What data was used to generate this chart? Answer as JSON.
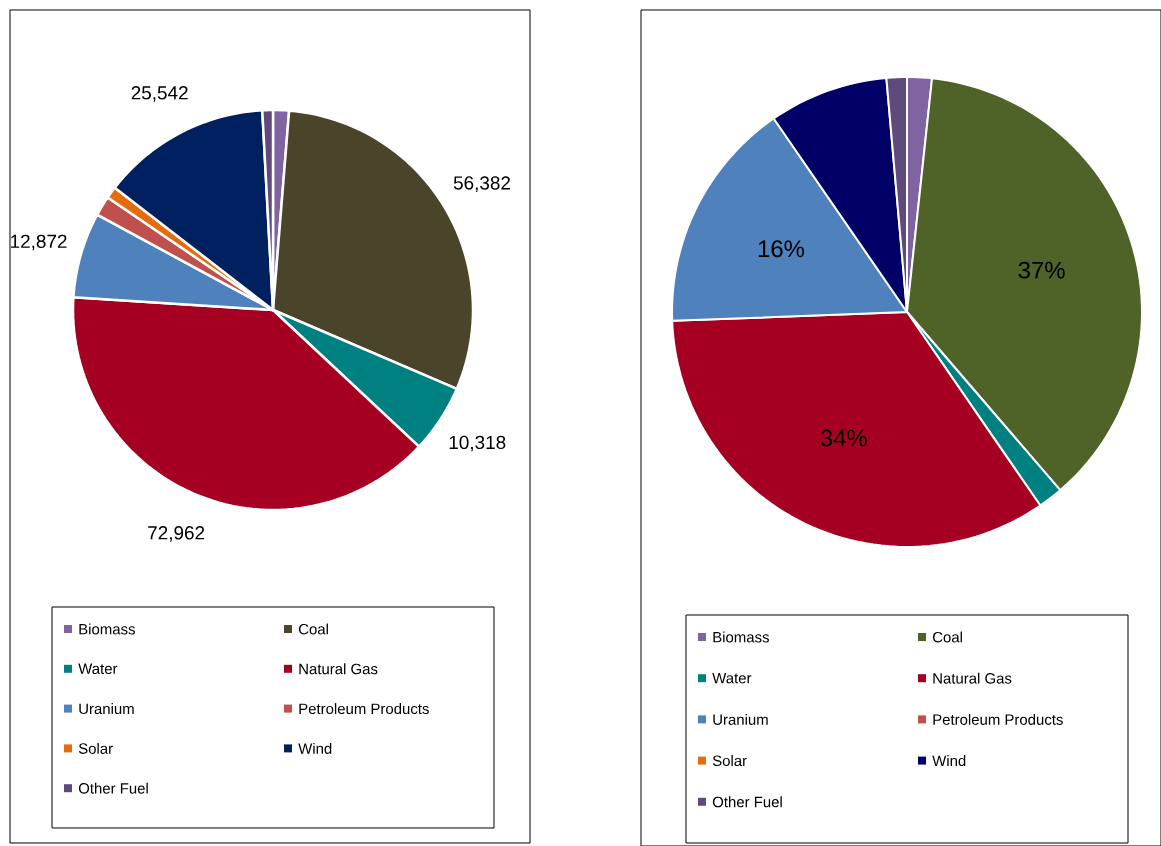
{
  "chart_data": [
    {
      "type": "pie",
      "legend": "bottom",
      "categories": [
        "Biomass",
        "Coal",
        "Water",
        "Natural Gas",
        "Uranium",
        "Petroleum Products",
        "Solar",
        "Wind",
        "Other Fuel"
      ],
      "values": [
        2400,
        56382,
        10318,
        72962,
        12872,
        3000,
        1800,
        25542,
        1600
      ],
      "value_labels": [
        null,
        "56,382",
        "10,318",
        "72,962",
        "12,872",
        null,
        null,
        "25,542",
        null
      ],
      "colors": [
        "#8064a2",
        "#4a452a",
        "#008080",
        "#a50021",
        "#4f81bd",
        "#c0504d",
        "#e46c0a",
        "#002060",
        "#604a7b"
      ]
    },
    {
      "type": "pie",
      "legend": "bottom",
      "categories": [
        "Biomass",
        "Coal",
        "Water",
        "Natural Gas",
        "Uranium",
        "Petroleum Products",
        "Solar",
        "Wind",
        "Other Fuel"
      ],
      "values": [
        1.7,
        37,
        1.7,
        34,
        16,
        null,
        null,
        8.2,
        1.4
      ],
      "value_labels": [
        null,
        "37%",
        null,
        "34%",
        "16%",
        null,
        null,
        null,
        null
      ],
      "colors": [
        "#8064a2",
        "#4f6228",
        "#008080",
        "#a50021",
        "#4f81bd",
        "#c0504d",
        "#e46c0a",
        "#000066",
        "#604a7b"
      ]
    }
  ]
}
